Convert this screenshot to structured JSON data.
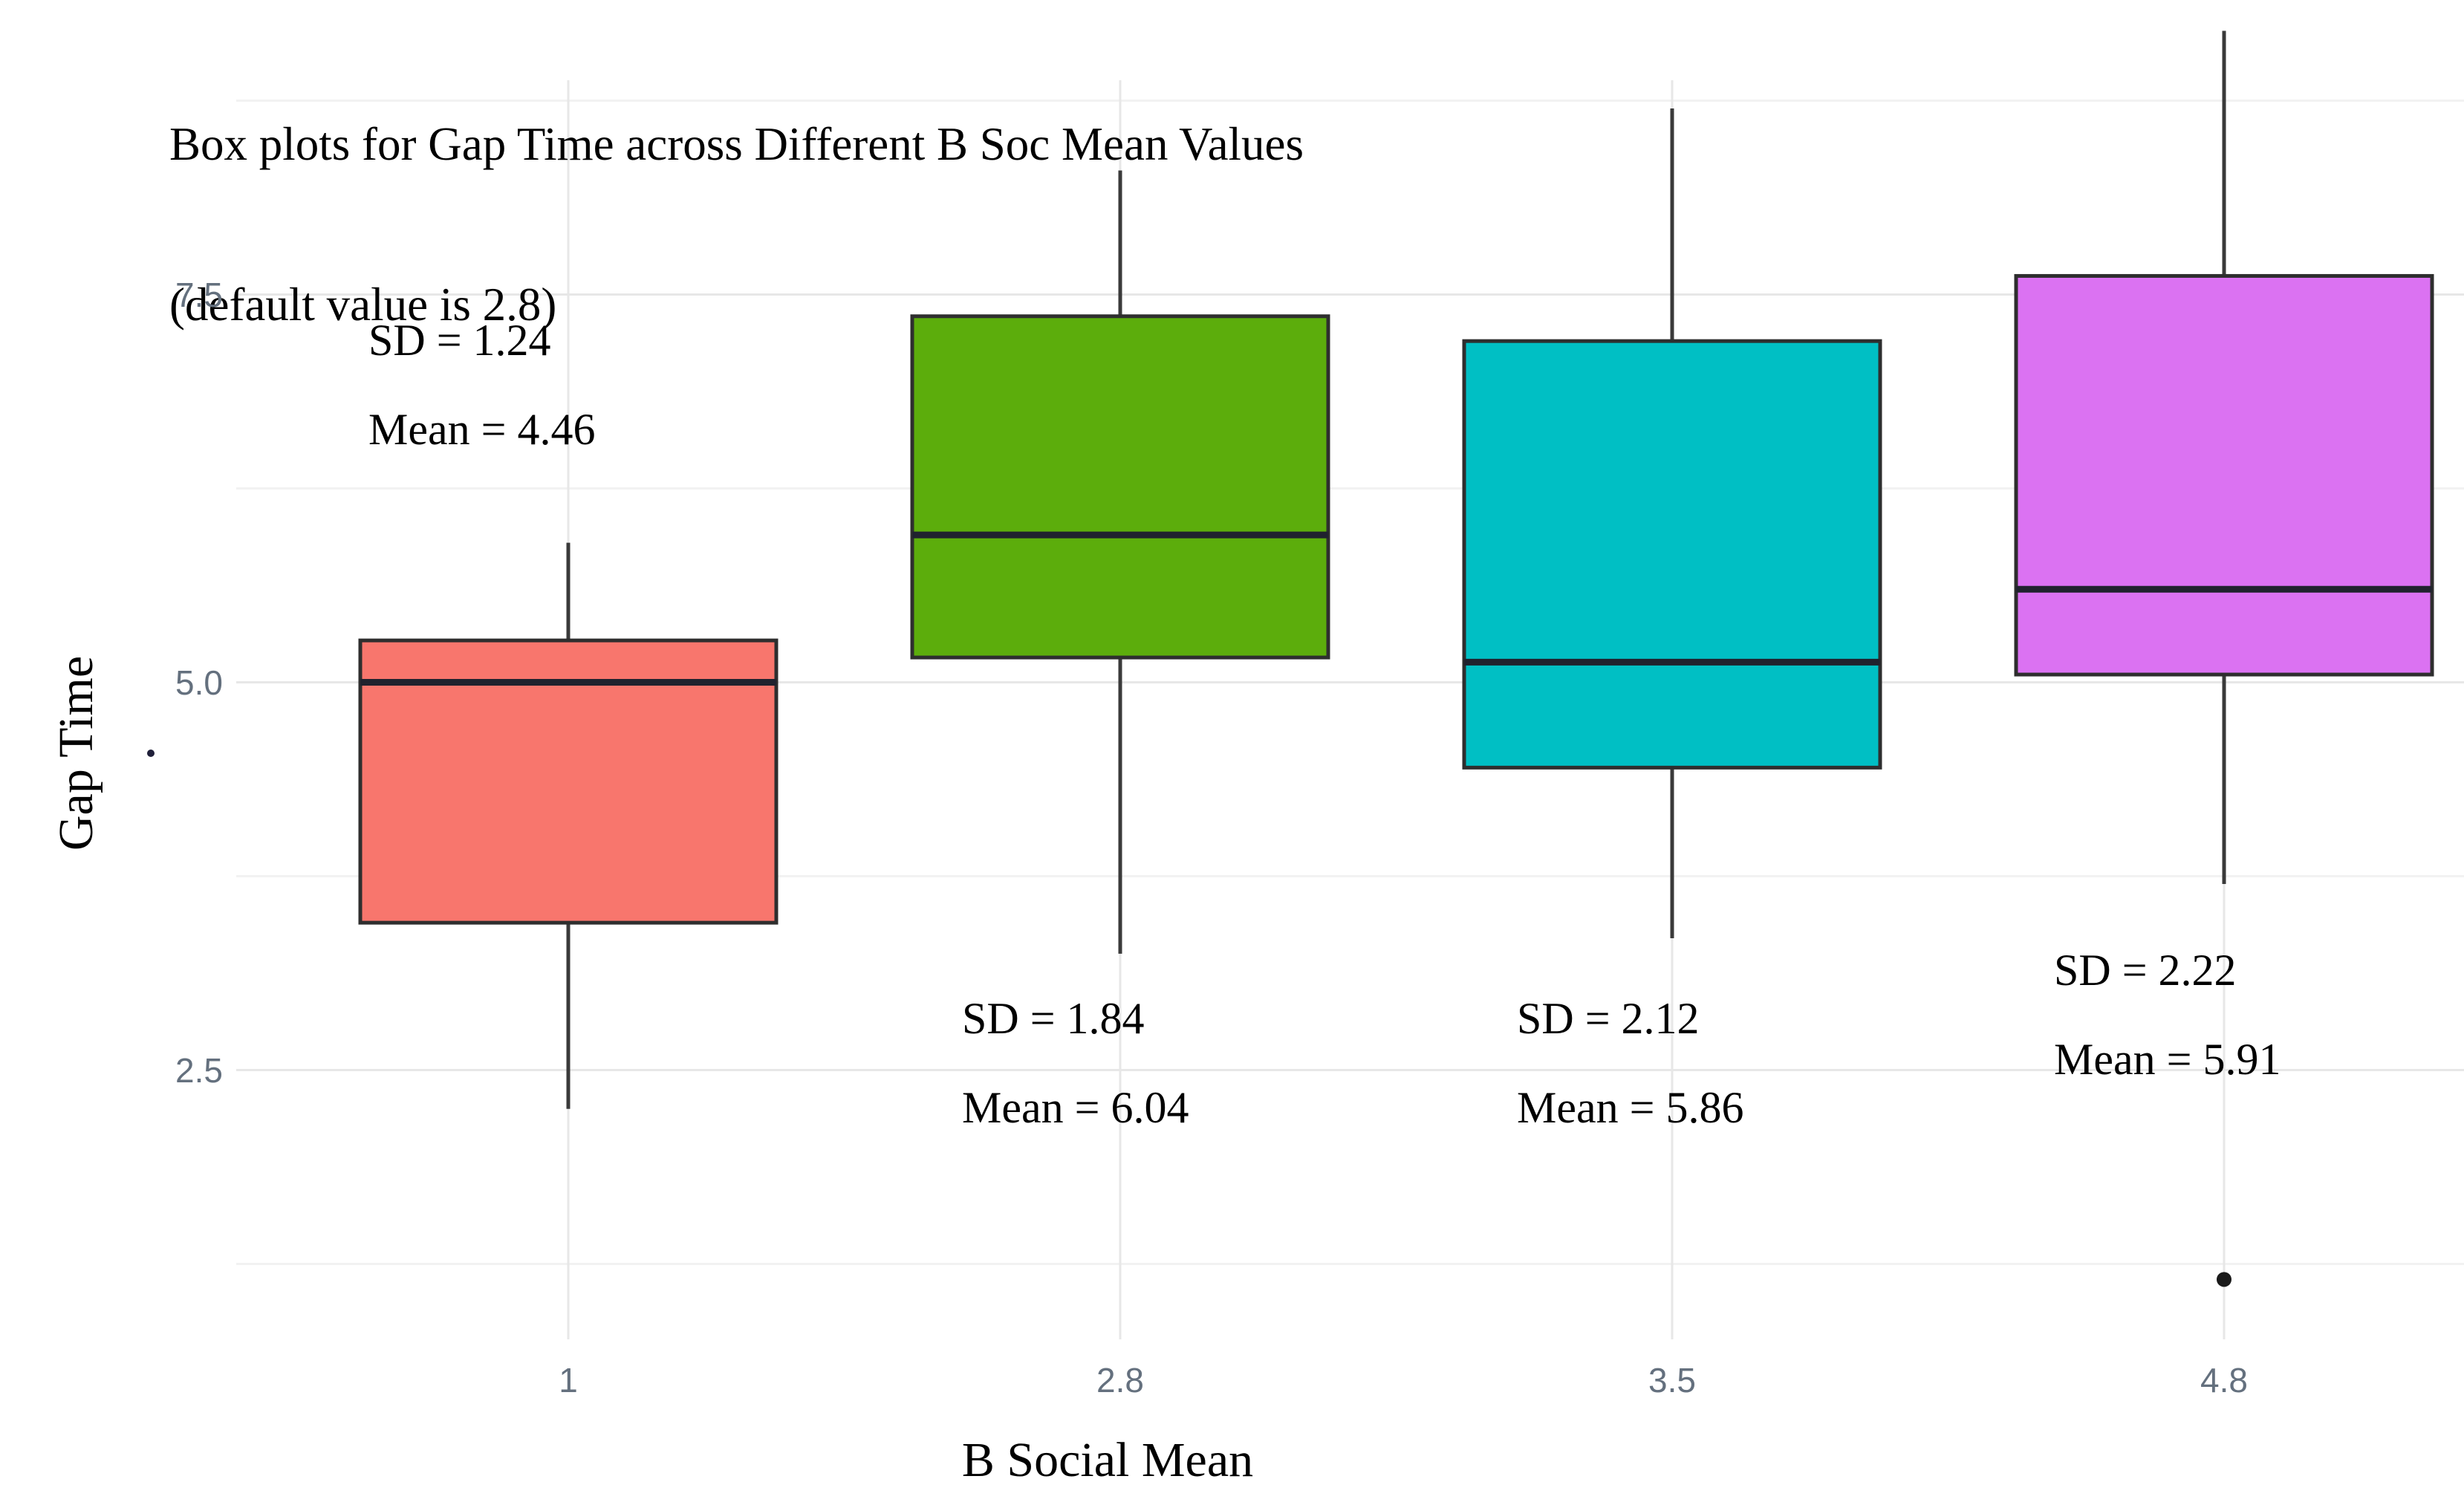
{
  "title": {
    "line1": "Box plots for Gap Time across Different B Soc Mean Values",
    "line2": "(default value is 2.8)"
  },
  "y_axis": {
    "label": "Gap Time"
  },
  "x_axis": {
    "label": "B Social Mean"
  },
  "colors": {
    "background": "#ffffff",
    "grid_major": "#e7e7e7",
    "grid_minor": "#f2f2f2",
    "grid_vertical": "#e7e7e7",
    "box_border": "#2e2e2e",
    "median_line": "#20222e",
    "whisker": "#3a3a3a",
    "outlier": "#1a1a1a",
    "tick_text": "#64707e",
    "text": "#000000"
  },
  "chart_data": {
    "type": "boxplot",
    "title": "Box plots for Gap Time across Different B Soc Mean Values (default value is 2.8)",
    "xlabel": "B Social Mean",
    "ylabel": "Gap Time",
    "categories": [
      "1",
      "2.8",
      "3.5",
      "4.8"
    ],
    "y_tick_labels": [
      "7.5",
      "5.0",
      "2.5"
    ],
    "y_tick_values": [
      7.5,
      5.0,
      2.5
    ],
    "y_minor_gridlines": [
      8.75,
      6.25,
      3.75,
      1.25
    ],
    "ylim_visible": [
      1.0,
      9.3
    ],
    "grid": true,
    "legend": false,
    "series": [
      {
        "category": "1",
        "fill": "#F8766D",
        "whisker_low": 2.25,
        "q1": 3.45,
        "median": 5.0,
        "q3": 5.27,
        "whisker_high": 5.9,
        "outliers": [],
        "sd": 1.24,
        "mean": 4.46,
        "sd_label": "SD = 1.24",
        "mean_label": "Mean = 4.46"
      },
      {
        "category": "2.8",
        "fill": "#5CAD0C",
        "whisker_low": 3.25,
        "q1": 5.16,
        "median": 5.95,
        "q3": 7.36,
        "whisker_high": 8.3,
        "outliers": [],
        "sd": 1.84,
        "mean": 6.04,
        "sd_label": "SD = 1.84",
        "mean_label": "Mean = 6.04"
      },
      {
        "category": "3.5",
        "fill": "#00BFC4",
        "whisker_low": 3.35,
        "q1": 4.45,
        "median": 5.13,
        "q3": 7.2,
        "whisker_high": 8.7,
        "outliers": [],
        "sd": 2.12,
        "mean": 5.86,
        "sd_label": "SD = 2.12",
        "mean_label": "Mean = 5.86"
      },
      {
        "category": "4.8",
        "fill": "#DB72F2",
        "whisker_low": 3.7,
        "q1": 5.05,
        "median": 5.6,
        "q3": 7.62,
        "whisker_high": 9.2,
        "outliers": [
          1.15
        ],
        "sd": 2.22,
        "mean": 5.91,
        "sd_label": "SD = 2.22",
        "mean_label": "Mean = 5.91"
      }
    ],
    "stray_mark": {
      "note": "small dark dot left of panel near Gap Time axis"
    }
  }
}
